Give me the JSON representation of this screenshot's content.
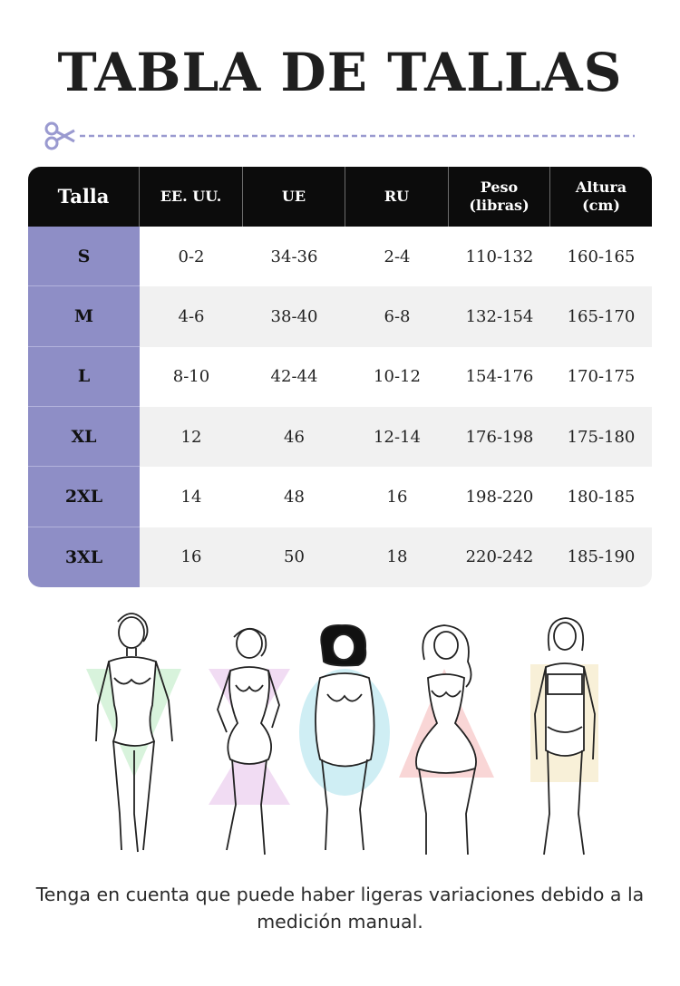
{
  "title": "TABLA DE TALLAS",
  "columns": [
    "Talla",
    "EE. UU.",
    "UE",
    "RU",
    "Peso\n(libras)",
    "Altura\n(cm)"
  ],
  "rows": [
    [
      "S",
      "0-2",
      "34-36",
      "2-4",
      "110-132",
      "160-165"
    ],
    [
      "M",
      "4-6",
      "38-40",
      "6-8",
      "132-154",
      "165-170"
    ],
    [
      "L",
      "8-10",
      "42-44",
      "10-12",
      "154-176",
      "170-175"
    ],
    [
      "XL",
      "12",
      "46",
      "12-14",
      "176-198",
      "175-180"
    ],
    [
      "2XL",
      "14",
      "48",
      "16",
      "198-220",
      "180-185"
    ],
    [
      "3XL",
      "16",
      "50",
      "18",
      "220-242",
      "185-190"
    ]
  ],
  "colors": {
    "header_bg": "#0c0c0c",
    "size_col_bg": "#8e8ec6",
    "row_alt_bg": "#f1f1f1",
    "cutline": "#9a9ad0",
    "shape_v": "#d8f3dc",
    "shape_x": "#f1dcf3",
    "shape_o": "#cfeef4",
    "shape_a": "#f9d6d6",
    "shape_h": "#f8f0d8"
  },
  "icons": {
    "cut": "scissors-icon"
  },
  "figures": [
    {
      "shape": "inverted-triangle",
      "name": "figure-v-shape"
    },
    {
      "shape": "hourglass",
      "name": "figure-x-shape"
    },
    {
      "shape": "oval",
      "name": "figure-o-shape"
    },
    {
      "shape": "triangle",
      "name": "figure-a-shape"
    },
    {
      "shape": "rectangle",
      "name": "figure-h-shape"
    }
  ],
  "note": "Tenga en cuenta que puede haber ligeras variaciones debido a la medición manual."
}
